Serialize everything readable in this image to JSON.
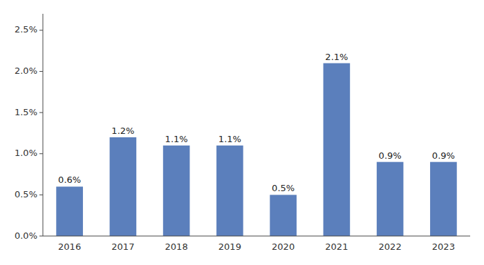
{
  "chart_data": {
    "type": "bar",
    "categories": [
      "2016",
      "2017",
      "2018",
      "2019",
      "2020",
      "2021",
      "2022",
      "2023"
    ],
    "values": [
      0.006,
      0.012,
      0.011,
      0.011,
      0.005,
      0.021,
      0.009,
      0.009
    ],
    "value_labels": [
      "0.6%",
      "1.2%",
      "1.1%",
      "1.1%",
      "0.5%",
      "2.1%",
      "0.9%",
      "0.9%"
    ],
    "data_labels": true,
    "color": "#5b7fbc",
    "ylim": [
      0,
      0.027
    ],
    "yticks": [
      {
        "value": 0.0,
        "label": "0.0%"
      },
      {
        "value": 0.005,
        "label": "0.5%"
      },
      {
        "value": 0.01,
        "label": "1.0%"
      },
      {
        "value": 0.015,
        "label": "1.5%"
      },
      {
        "value": 0.02,
        "label": "2.0%"
      },
      {
        "value": 0.025,
        "label": "2.5%"
      }
    ],
    "grid": false
  }
}
